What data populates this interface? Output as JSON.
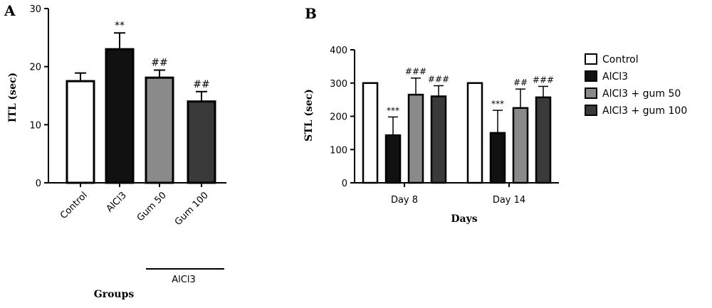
{
  "chart_data": [
    {
      "type": "bar",
      "panel": "A",
      "ylabel": "ITL (sec)",
      "xlabel": "Groups",
      "ylim": [
        0,
        30
      ],
      "yticks": [
        0,
        10,
        20,
        30
      ],
      "categories": [
        "Control",
        "AlCl3",
        "Gum 50",
        "Gum 100"
      ],
      "values": [
        17.5,
        23.0,
        18.1,
        14.0
      ],
      "errors": [
        1.4,
        2.8,
        1.3,
        1.7
      ],
      "significance": [
        "",
        "**",
        "##",
        "##"
      ],
      "bar_colors": [
        "#ffffff",
        "#111111",
        "#8a8a8a",
        "#3a3a3a"
      ],
      "group_bracket_label": "AlCl3"
    },
    {
      "type": "bar",
      "panel": "B",
      "ylabel": "STL (sec)",
      "xlabel": "Days",
      "ylim": [
        0,
        400
      ],
      "yticks": [
        0,
        100,
        200,
        300,
        400
      ],
      "categories": [
        "Day 8",
        "Day 14"
      ],
      "series": [
        {
          "name": "Control",
          "values": [
            300,
            300
          ],
          "errors": [
            0,
            0
          ],
          "significance": [
            "",
            ""
          ],
          "color": "#ffffff"
        },
        {
          "name": "AlCl3",
          "values": [
            143,
            150
          ],
          "errors": [
            55,
            68
          ],
          "significance": [
            "***",
            "***"
          ],
          "color": "#111111"
        },
        {
          "name": "AlCl3 + gum 50",
          "values": [
            265,
            225
          ],
          "errors": [
            50,
            57
          ],
          "significance": [
            "###",
            "##"
          ],
          "color": "#8a8a8a"
        },
        {
          "name": "AlCl3 + gum 100",
          "values": [
            260,
            257
          ],
          "errors": [
            32,
            33
          ],
          "significance": [
            "###",
            "###"
          ],
          "color": "#3a3a3a"
        }
      ],
      "legend_position": "right"
    }
  ]
}
